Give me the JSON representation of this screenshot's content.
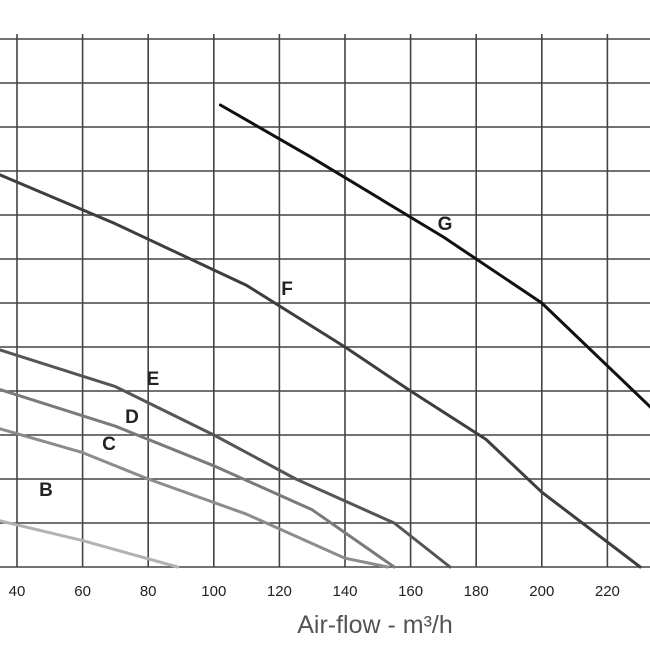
{
  "chart_data": {
    "type": "line",
    "xlabel": "Air-flow - m³/h",
    "xticks": [
      40,
      60,
      80,
      100,
      120,
      140,
      160,
      180,
      200,
      220
    ],
    "xlim": [
      32,
      235
    ],
    "ylim": [
      0,
      12
    ],
    "grid": true,
    "series": [
      {
        "name": "B",
        "color": "#b2b2b2",
        "x": [
          32,
          60,
          89
        ],
        "y": [
          1.1,
          0.6,
          0.0
        ]
      },
      {
        "name": "C",
        "color": "#8c8c8c",
        "x": [
          32,
          60,
          80,
          110,
          140,
          153
        ],
        "y": [
          3.2,
          2.6,
          2.0,
          1.2,
          0.2,
          0.0
        ]
      },
      {
        "name": "D",
        "color": "#7a7a7a",
        "x": [
          32,
          70,
          100,
          130,
          155
        ],
        "y": [
          4.1,
          3.2,
          2.3,
          1.3,
          0.0
        ]
      },
      {
        "name": "E",
        "color": "#555555",
        "x": [
          32,
          70,
          100,
          125,
          155,
          172
        ],
        "y": [
          5.0,
          4.1,
          3.0,
          2.0,
          1.0,
          0.0
        ]
      },
      {
        "name": "F",
        "color": "#3e3e3e",
        "x": [
          32,
          70,
          110,
          140,
          160,
          183,
          200,
          230
        ],
        "y": [
          9.0,
          7.8,
          6.4,
          5.0,
          4.0,
          2.9,
          1.7,
          0.0
        ]
      },
      {
        "name": "G",
        "color": "#111111",
        "x": [
          102,
          130,
          170,
          200,
          235
        ],
        "y": [
          10.5,
          9.3,
          7.5,
          6.0,
          3.5
        ]
      }
    ],
    "annotations": [
      "B",
      "C",
      "D",
      "E",
      "F",
      "G"
    ]
  }
}
